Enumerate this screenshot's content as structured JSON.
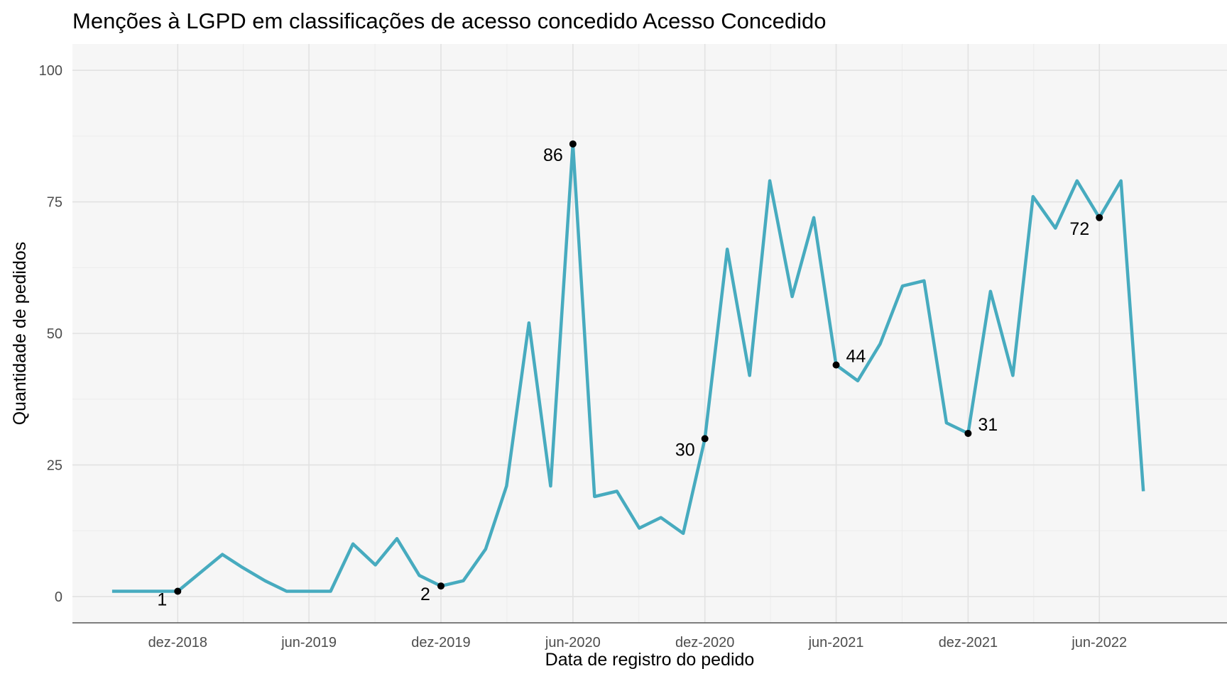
{
  "chart_data": {
    "type": "line",
    "title": "Menções à LGPD em classificações de acesso concedido Acesso Concedido",
    "xlabel": "Data de registro do pedido",
    "ylabel": "Quantidade de pedidos",
    "ylim": [
      -5,
      105
    ],
    "xlim": [
      "2018-07-08",
      "2022-11-25"
    ],
    "grid": true,
    "line_color": "#47ABBF",
    "panel_background": "#F6F6F6",
    "x_ticks": [
      {
        "date": "2018-12-01",
        "label": "dez-2018"
      },
      {
        "date": "2019-06-01",
        "label": "jun-2019"
      },
      {
        "date": "2019-12-01",
        "label": "dez-2019"
      },
      {
        "date": "2020-06-01",
        "label": "jun-2020"
      },
      {
        "date": "2020-12-01",
        "label": "dez-2020"
      },
      {
        "date": "2021-06-01",
        "label": "jun-2021"
      },
      {
        "date": "2021-12-01",
        "label": "dez-2021"
      },
      {
        "date": "2022-06-01",
        "label": "jun-2022"
      }
    ],
    "y_ticks": [
      0,
      25,
      50,
      75,
      100
    ],
    "series": [
      {
        "x": [
          "2018-09-01",
          "2018-10-01",
          "2018-11-01",
          "2018-12-01",
          "2019-01-01",
          "2019-02-01",
          "2019-03-01",
          "2019-04-01",
          "2019-05-01",
          "2019-06-01",
          "2019-07-01",
          "2019-08-01",
          "2019-09-01",
          "2019-10-01",
          "2019-11-01",
          "2019-12-01",
          "2020-01-01",
          "2020-02-01",
          "2020-03-01",
          "2020-04-01",
          "2020-05-01",
          "2020-06-01",
          "2020-07-01",
          "2020-08-01",
          "2020-09-01",
          "2020-10-01",
          "2020-11-01",
          "2020-12-01",
          "2021-01-01",
          "2021-02-01",
          "2021-03-01",
          "2021-04-01",
          "2021-05-01",
          "2021-06-01",
          "2021-07-01",
          "2021-08-01",
          "2021-09-01",
          "2021-10-01",
          "2021-11-01",
          "2021-12-01",
          "2022-01-01",
          "2022-02-01",
          "2022-03-01",
          "2022-04-01",
          "2022-05-01",
          "2022-06-01",
          "2022-07-01",
          "2022-08-01"
        ],
        "y": [
          1,
          1,
          1,
          1,
          4.5,
          8,
          5.5,
          3,
          1,
          1,
          1,
          10,
          6,
          11,
          4,
          2,
          3,
          9,
          21,
          52,
          21,
          86,
          19,
          20,
          13,
          15,
          12,
          30,
          66,
          42,
          79,
          57,
          72,
          44,
          41,
          48,
          59,
          60,
          33,
          31,
          58,
          42,
          76,
          70,
          79,
          72,
          79,
          20
        ]
      }
    ],
    "annotations": [
      {
        "x": "2018-12-01",
        "y": 1,
        "label": "1"
      },
      {
        "x": "2019-12-01",
        "y": 2,
        "label": "2"
      },
      {
        "x": "2020-06-01",
        "y": 86,
        "label": "86"
      },
      {
        "x": "2020-12-01",
        "y": 30,
        "label": "30"
      },
      {
        "x": "2021-06-01",
        "y": 44,
        "label": "44"
      },
      {
        "x": "2021-12-01",
        "y": 31,
        "label": "31"
      },
      {
        "x": "2022-06-01",
        "y": 72,
        "label": "72"
      }
    ]
  }
}
